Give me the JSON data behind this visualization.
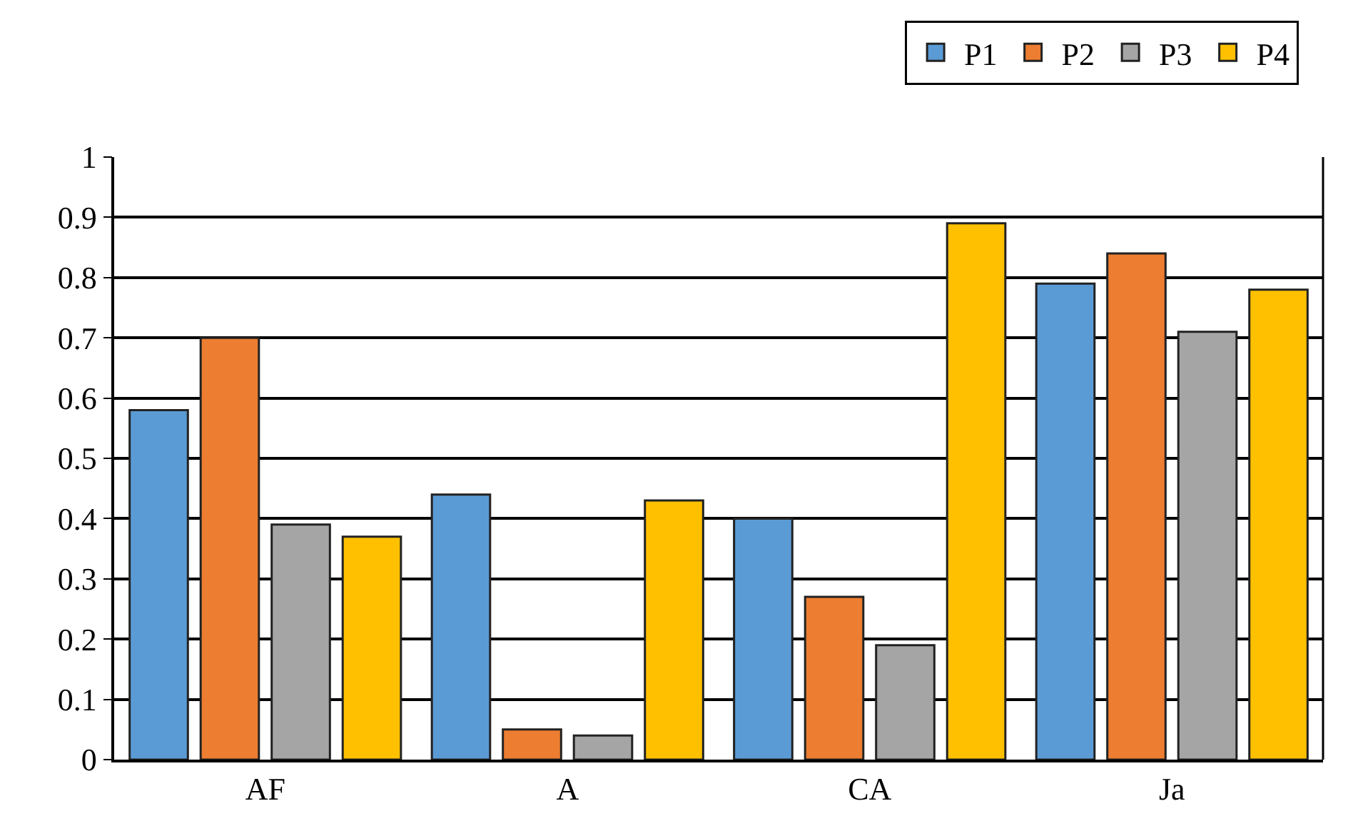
{
  "chart_data": {
    "type": "bar",
    "categories": [
      "AF",
      "A",
      "CA",
      "Ja"
    ],
    "series": [
      {
        "name": "P1",
        "color": "#5b9bd5",
        "values": [
          0.58,
          0.44,
          0.4,
          0.79
        ]
      },
      {
        "name": "P2",
        "color": "#ed7d31",
        "values": [
          0.7,
          0.05,
          0.27,
          0.84
        ]
      },
      {
        "name": "P3",
        "color": "#a5a5a5",
        "values": [
          0.39,
          0.04,
          0.19,
          0.71
        ]
      },
      {
        "name": "P4",
        "color": "#ffc000",
        "values": [
          0.37,
          0.43,
          0.89,
          0.78
        ]
      }
    ],
    "ylim": [
      0,
      1
    ],
    "yticks": [
      0,
      0.1,
      0.2,
      0.3,
      0.4,
      0.5,
      0.6,
      0.7,
      0.8,
      0.9,
      1
    ],
    "grid": "y",
    "legend": "top right"
  }
}
